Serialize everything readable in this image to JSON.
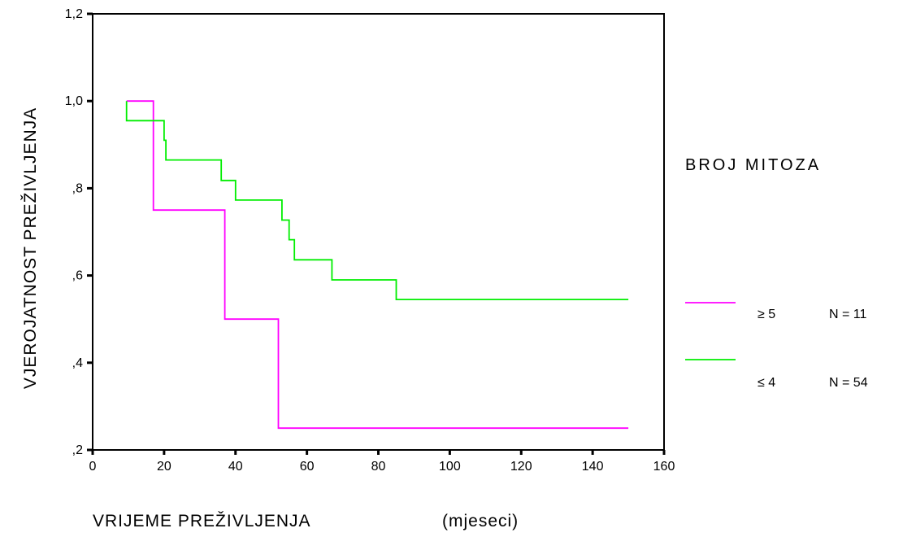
{
  "chart_data": {
    "type": "line",
    "step": true,
    "title": "",
    "xlabel": "VRIJEME PREŽIVLJENJA",
    "xlabel_unit": "(mjeseci)",
    "ylabel": "VJEROJATNOST PREŽIVLJENJA",
    "xlim": [
      0,
      160
    ],
    "ylim": [
      0.2,
      1.2
    ],
    "xticks": [
      0,
      20,
      40,
      60,
      80,
      100,
      120,
      140,
      160
    ],
    "xtick_labels": [
      "0",
      "20",
      "40",
      "60",
      "80",
      "100",
      "120",
      "140",
      "160"
    ],
    "yticks": [
      0.2,
      0.4,
      0.6,
      0.8,
      1.0,
      1.2
    ],
    "ytick_labels": [
      ",2",
      ",4",
      ",6",
      ",8",
      "1,0",
      "1,2"
    ],
    "grid": false,
    "legend": {
      "title": "BROJ MITOZA",
      "placement": "right"
    },
    "series": [
      {
        "name": "≥ 5",
        "n_label": "N = 11",
        "color": "#ff00ff",
        "x": [
          9.5,
          17,
          17,
          37,
          37,
          52,
          52,
          150
        ],
        "y": [
          1.0,
          1.0,
          0.75,
          0.75,
          0.5,
          0.5,
          0.25,
          0.25
        ]
      },
      {
        "name": "≤ 4",
        "n_label": "N = 54",
        "color": "#00ee00",
        "x": [
          9.5,
          9.5,
          20,
          20,
          20.5,
          20.5,
          36,
          36,
          40,
          40,
          53,
          53,
          55,
          55,
          56.5,
          56.5,
          67,
          67,
          85,
          85,
          150
        ],
        "y": [
          1.0,
          0.955,
          0.955,
          0.91,
          0.91,
          0.865,
          0.865,
          0.818,
          0.818,
          0.773,
          0.773,
          0.727,
          0.727,
          0.682,
          0.682,
          0.636,
          0.636,
          0.59,
          0.59,
          0.545,
          0.545
        ]
      }
    ]
  }
}
